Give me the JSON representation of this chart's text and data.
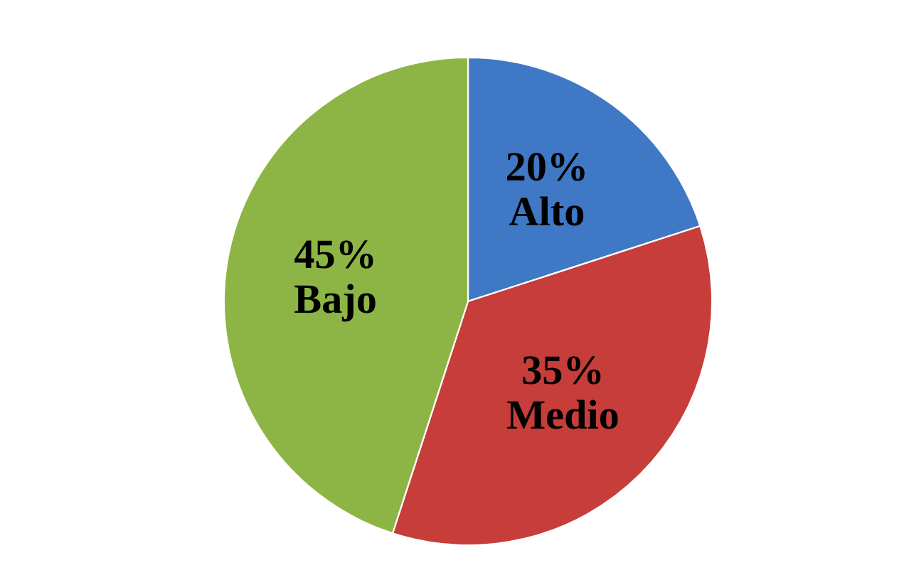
{
  "chart_data": {
    "type": "pie",
    "categories": [
      "Alto",
      "Medio",
      "Bajo"
    ],
    "values": [
      20,
      35,
      45
    ],
    "value_labels": [
      "20%",
      "35%",
      "45%"
    ],
    "colors": [
      "#3f78c4",
      "#c63d3a",
      "#8db545"
    ],
    "legend": false
  }
}
